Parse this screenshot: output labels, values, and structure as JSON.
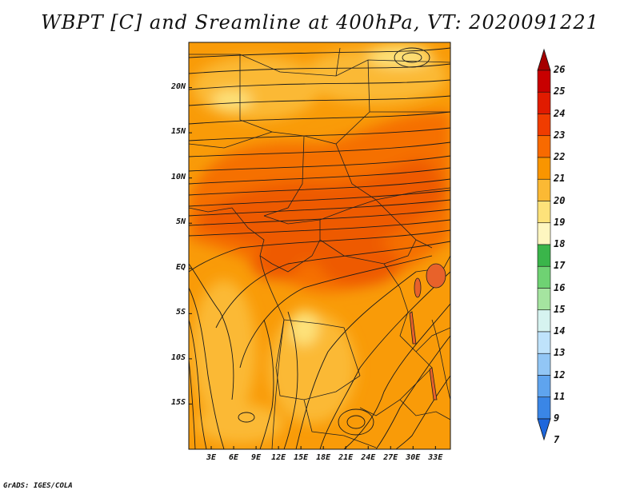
{
  "title": "WBPT [C] and Sreamline at 400hPa, VT: 2020091221",
  "credit": "GrADS: IGES/COLA",
  "map": {
    "lat_ticks": [
      "20N",
      "15N",
      "10N",
      "5N",
      "EQ",
      "5S",
      "10S",
      "15S"
    ],
    "lat_values": [
      20,
      15,
      10,
      5,
      0,
      -5,
      -10,
      -15
    ],
    "lon_ticks": [
      "3E",
      "6E",
      "9E",
      "12E",
      "15E",
      "18E",
      "21E",
      "24E",
      "27E",
      "30E",
      "33E"
    ],
    "lon_values": [
      3,
      6,
      9,
      12,
      15,
      18,
      21,
      24,
      27,
      30,
      33
    ],
    "lat_range": [
      -20,
      25
    ],
    "lon_range": [
      0,
      35
    ]
  },
  "colorbar": {
    "labels": [
      "26",
      "25",
      "24",
      "23",
      "22",
      "21",
      "20",
      "19",
      "18",
      "17",
      "16",
      "15",
      "14",
      "13",
      "12",
      "11",
      "9",
      "7"
    ],
    "colors": [
      "#a50000",
      "#c80000",
      "#e11b00",
      "#f03c00",
      "#f86a00",
      "#f99500",
      "#fbb934",
      "#fde27a",
      "#fef6c0",
      "#3ab54a",
      "#6fd273",
      "#a5e4a0",
      "#d6f3f0",
      "#bfe3fb",
      "#92c6f5",
      "#5fa4ee",
      "#3a86e6",
      "#1e67dc"
    ]
  }
}
